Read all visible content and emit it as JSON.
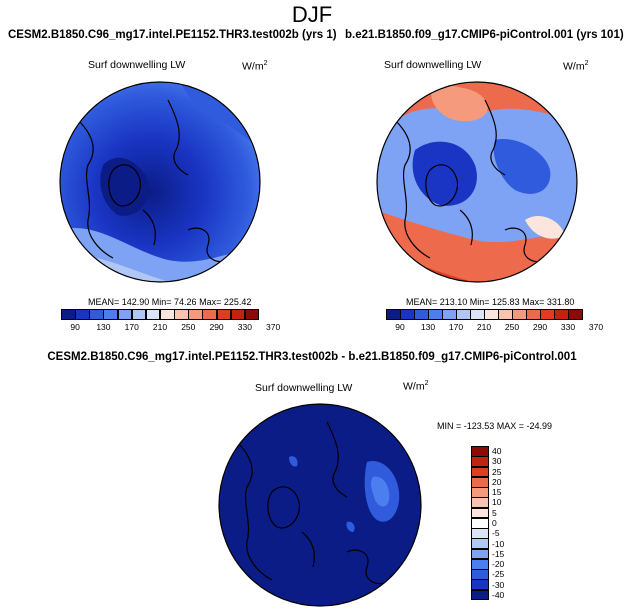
{
  "title": "DJF",
  "panels": {
    "left": {
      "title": "CESM2.B1850.C96_mg17.intel.PE1152.THR3.test002b (yrs 1)",
      "variable": "Surf downwelling LW",
      "units_base": "W/m",
      "units_exp": "2",
      "stats": "MEAN= 142.90  Min=  74.26  Max= 225.42"
    },
    "right": {
      "title": "b.e21.B1850.f09_g17.CMIP6-piControl.001 (yrs 101)",
      "variable": "Surf downwelling LW",
      "units_base": "W/m",
      "units_exp": "2",
      "stats": "MEAN= 213.10  Min= 125.83  Max= 331.80"
    },
    "diff": {
      "title": "CESM2.B1850.C96_mg17.intel.PE1152.THR3.test002b - b.e21.B1850.f09_g17.CMIP6-piControl.001",
      "variable": "Surf downwelling LW",
      "units_base": "W/m",
      "units_exp": "2",
      "stats": "MIN = -123.53  MAX = -24.99"
    }
  },
  "colorbar_abs": {
    "labels": [
      "90",
      "130",
      "170",
      "210",
      "250",
      "290",
      "330",
      "370"
    ],
    "colors": [
      "#0b1c86",
      "#1a35c4",
      "#2f5bdc",
      "#4d7ef0",
      "#7ea3f4",
      "#b0c7f6",
      "#dbe5f8",
      "#fbe5dc",
      "#f9c4ae",
      "#f59a7c",
      "#ee6a4d",
      "#e03c22",
      "#c3220f",
      "#8e0a05"
    ]
  },
  "colorbar_diff": {
    "labels": [
      "40",
      "30",
      "25",
      "20",
      "15",
      "10",
      "5",
      "0",
      "-5",
      "-10",
      "-15",
      "-20",
      "-25",
      "-30",
      "-40"
    ],
    "colors": [
      "#8e0a05",
      "#c3220f",
      "#e03c22",
      "#ee6a4d",
      "#f59a7c",
      "#f9c4ae",
      "#fbe5dc",
      "#ffffff",
      "#dbe5f8",
      "#b0c7f6",
      "#7ea3f4",
      "#4d7ef0",
      "#2f5bdc",
      "#1a35c4",
      "#0b1c86"
    ]
  }
}
